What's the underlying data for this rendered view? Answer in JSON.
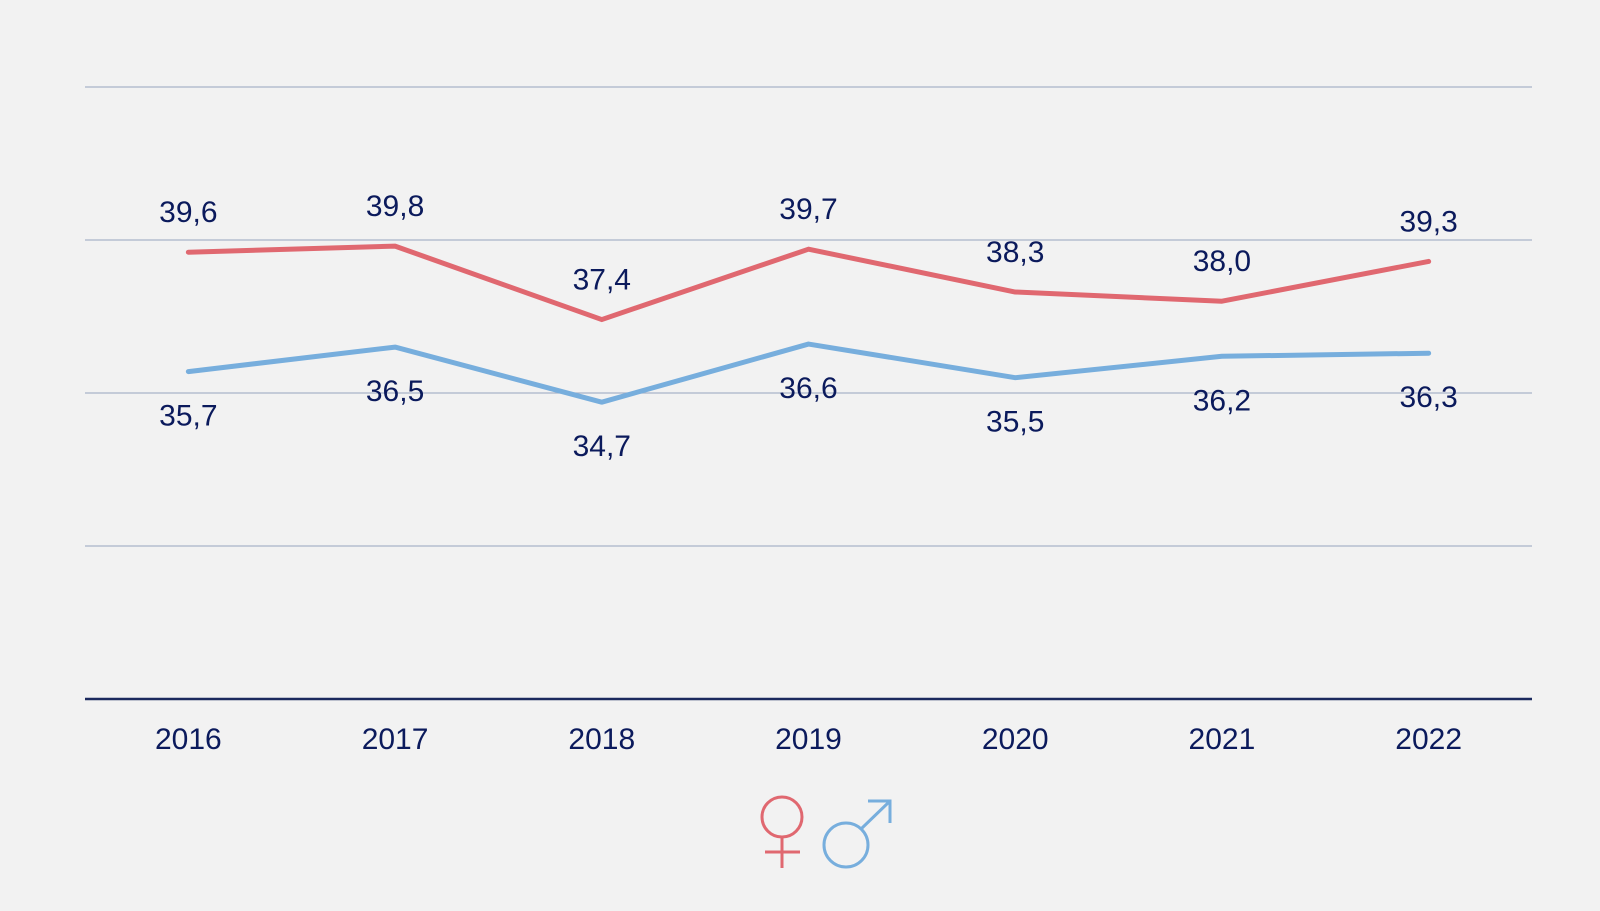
{
  "chart_data": {
    "type": "line",
    "title": "",
    "xlabel": "",
    "ylabel": "",
    "categories": [
      "2016",
      "2017",
      "2018",
      "2019",
      "2020",
      "2021",
      "2022"
    ],
    "ylim": [
      25,
      45
    ],
    "yticks": [
      25,
      30,
      35,
      40,
      45
    ],
    "grid": true,
    "series": [
      {
        "name": "Women",
        "icon": "female-symbol",
        "color": "#e06870",
        "values": [
          39.6,
          39.8,
          37.4,
          39.7,
          38.3,
          38.0,
          39.3
        ],
        "labels": [
          "39,6",
          "39,8",
          "37,4",
          "39,7",
          "38,3",
          "38,0",
          "39,3"
        ],
        "label_position": "above"
      },
      {
        "name": "Men",
        "icon": "male-symbol",
        "color": "#77aedd",
        "values": [
          35.7,
          36.5,
          34.7,
          36.6,
          35.5,
          36.2,
          36.3
        ],
        "labels": [
          "35,7",
          "36,5",
          "34,7",
          "36,6",
          "35,5",
          "36,2",
          "36,3"
        ],
        "label_position": "below"
      }
    ],
    "legend": {
      "placement": "bottom-center",
      "entries": [
        {
          "series": "Women",
          "glyph": "♀"
        },
        {
          "series": "Men",
          "glyph": "♂"
        }
      ]
    }
  },
  "colors": {
    "background": "#f2f2f2",
    "gridline": "#a9b4c8",
    "axis": "#1c2a5e",
    "label_text": "#0b1a5c"
  }
}
